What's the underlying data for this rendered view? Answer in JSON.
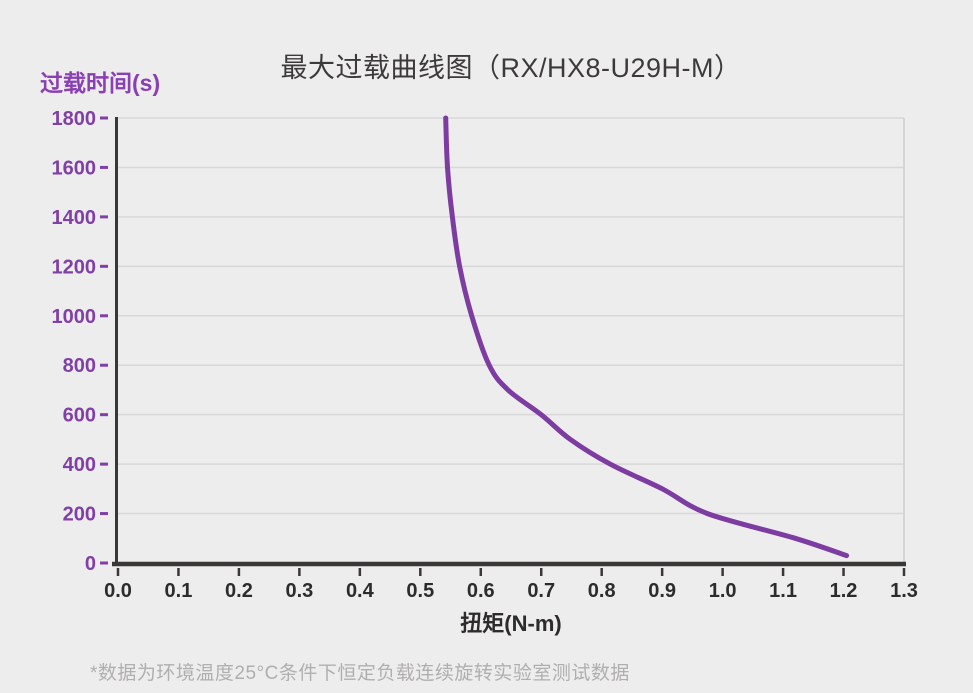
{
  "page": {
    "background_color": "#ededed"
  },
  "header": {
    "title": "最大过载曲线图（RX/HX8-U29H-M）"
  },
  "footer": {
    "footnote": "*数据为环境温度25°C条件下恒定负载连续旋转实验室测试数据"
  },
  "chart_data": {
    "type": "line",
    "title": "最大过载曲线图（RX/HX8-U29H-M）",
    "xlabel": "扭矩(N-m)",
    "ylabel": "过载时间(s)",
    "xlim": [
      0.0,
      1.3
    ],
    "ylim": [
      0,
      1800
    ],
    "x_tick_labels": [
      "0.0",
      "0.1",
      "0.2",
      "0.3",
      "0.4",
      "0.5",
      "0.6",
      "0.7",
      "0.8",
      "0.9",
      "1.0",
      "1.1",
      "1.2",
      "1.3"
    ],
    "y_tick_values": [
      0,
      200,
      400,
      600,
      800,
      1000,
      1200,
      1400,
      1600,
      1800
    ],
    "grid": "horizontal-only",
    "legend": "none",
    "series": [
      {
        "name": "最大过载曲线",
        "color": "#7d3ca1",
        "points": [
          [
            0.542,
            1800
          ],
          [
            0.545,
            1600
          ],
          [
            0.553,
            1400
          ],
          [
            0.565,
            1200
          ],
          [
            0.585,
            1000
          ],
          [
            0.614,
            800
          ],
          [
            0.645,
            700
          ],
          [
            0.7,
            600
          ],
          [
            0.748,
            500
          ],
          [
            0.814,
            400
          ],
          [
            0.9,
            300
          ],
          [
            0.975,
            200
          ],
          [
            1.12,
            100
          ],
          [
            1.205,
            30
          ]
        ]
      }
    ],
    "colors": {
      "curve": "#7d3ca1",
      "axis_purple_text": "#8040a6",
      "axis_dark_text": "#2e2b2b",
      "axis_line": "#3a3737",
      "gridline": "#d8d8d8",
      "plot_border": "#cfcfcf",
      "title_text": "#3d3a3a",
      "footnote_text": "#b1aeae"
    }
  }
}
